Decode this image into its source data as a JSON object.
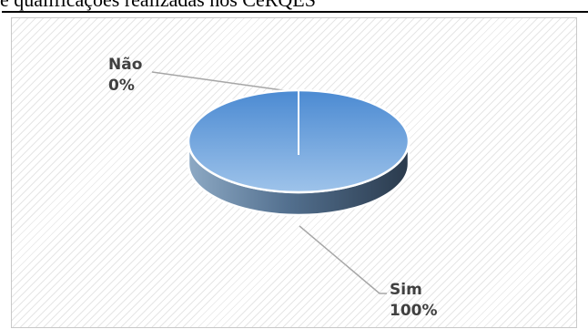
{
  "caption": {
    "text": "e qualificações realizadas nos CeRQES"
  },
  "chart_data": {
    "type": "pie",
    "style": "3d",
    "categories": [
      "Não",
      "Sim"
    ],
    "values": [
      0,
      100
    ],
    "data_labels": [
      "0%",
      "100%"
    ],
    "colors": [
      "#4f8fd6",
      "#5b9bd5"
    ],
    "title": "",
    "legend": "none"
  }
}
